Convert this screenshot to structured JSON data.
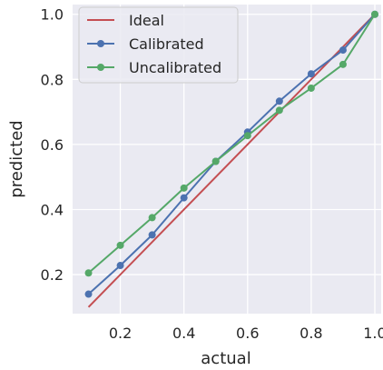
{
  "chart_data": {
    "type": "line",
    "xlabel": "actual",
    "ylabel": "predicted",
    "xlim": [
      0.05,
      1.02
    ],
    "ylim": [
      0.08,
      1.03
    ],
    "x_ticks": [
      0.2,
      0.4,
      0.6,
      0.8,
      1.0
    ],
    "y_ticks": [
      0.2,
      0.4,
      0.6,
      0.8,
      1.0
    ],
    "x_tick_labels": [
      "0.2",
      "0.4",
      "0.6",
      "0.8",
      "1.0"
    ],
    "y_tick_labels": [
      "0.2",
      "0.4",
      "0.6",
      "0.8",
      "1.0"
    ],
    "grid": true,
    "legend": "top-left",
    "series": [
      {
        "name": "Ideal",
        "color": "#c44e52",
        "markers": false,
        "x": [
          0.1,
          1.0
        ],
        "y": [
          0.1,
          1.0
        ]
      },
      {
        "name": "Calibrated",
        "color": "#4c72b0",
        "markers": true,
        "x": [
          0.1,
          0.2,
          0.3,
          0.4,
          0.5,
          0.6,
          0.7,
          0.8,
          0.9,
          1.0
        ],
        "y": [
          0.14,
          0.228,
          0.322,
          0.436,
          0.548,
          0.638,
          0.733,
          0.817,
          0.89,
          1.0
        ]
      },
      {
        "name": "Uncalibrated",
        "color": "#55a868",
        "markers": true,
        "x": [
          0.1,
          0.2,
          0.3,
          0.4,
          0.5,
          0.6,
          0.7,
          0.8,
          0.9,
          1.0
        ],
        "y": [
          0.205,
          0.29,
          0.375,
          0.466,
          0.548,
          0.627,
          0.705,
          0.773,
          0.846,
          1.0
        ]
      }
    ]
  }
}
